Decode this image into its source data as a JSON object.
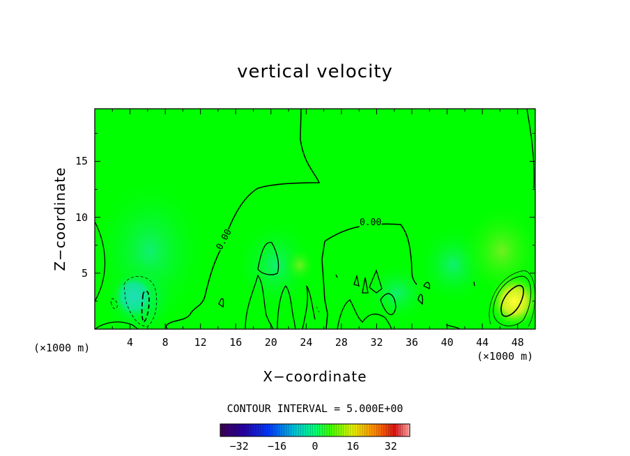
{
  "chart_data": {
    "type": "heatmap",
    "title": "vertical velocity",
    "xlabel": "X−coordinate",
    "ylabel": "Z−coordinate",
    "x_units_label": "(×1000 m)",
    "y_units_label": "(×1000 m)",
    "xlim": [
      0,
      50
    ],
    "ylim": [
      0,
      19.7
    ],
    "x_ticks": [
      4,
      8,
      12,
      16,
      20,
      24,
      28,
      32,
      36,
      40,
      44,
      48
    ],
    "y_ticks": [
      5,
      10,
      15
    ],
    "x_tick_labels": [
      "4",
      "8",
      "12",
      "16",
      "20",
      "24",
      "28",
      "32",
      "36",
      "40",
      "44",
      "48"
    ],
    "y_tick_labels": [
      "5",
      "10",
      "15"
    ],
    "contour_interval_text": "CONTOUR INTERVAL = 5.000E+00",
    "contour_labels": [
      {
        "text": "0.00",
        "x": 14.7,
        "y": 8.0
      },
      {
        "text": "0.00",
        "x": 31.3,
        "y": 9.5
      }
    ],
    "colorbar": {
      "min": -40,
      "max": 40,
      "ticks": [
        -32,
        -16,
        0,
        16,
        32
      ],
      "tick_labels": [
        "−32",
        "−16",
        "0",
        "16",
        "32"
      ]
    },
    "features": [
      {
        "kind": "downdraft",
        "x": 5.8,
        "y": 2.4,
        "value": -10
      },
      {
        "kind": "updraft",
        "x": 47.2,
        "y": 2.5,
        "value": 10
      }
    ]
  }
}
